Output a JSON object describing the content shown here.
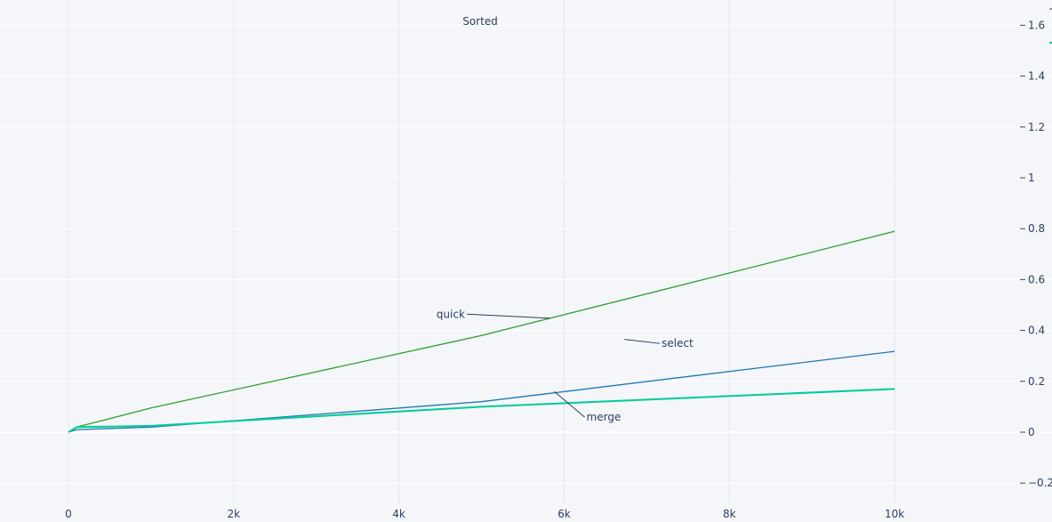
{
  "chart_data": {
    "type": "line",
    "title": "Sorted",
    "xlabel": "",
    "ylabel": "",
    "xlim": [
      0,
      11500
    ],
    "ylim": [
      -0.22,
      1.7
    ],
    "grid": true,
    "x_ticks": [
      0,
      2000,
      4000,
      6000,
      8000,
      10000
    ],
    "x_tick_labels": [
      "0",
      "2k",
      "4k",
      "6k",
      "8k",
      "10k"
    ],
    "y_ticks": [
      -0.2,
      0,
      0.2,
      0.4,
      0.6,
      0.8,
      1,
      1.2,
      1.4,
      1.6
    ],
    "y_tick_labels": [
      "−0.2",
      "0",
      "0.2",
      "0.4",
      "0.6",
      "0.8",
      "1",
      "1.2",
      "1.4",
      "1.6"
    ],
    "series": [
      {
        "color": "#2ca02c",
        "points": [
          [
            0,
            0.0
          ],
          [
            100,
            0.02
          ],
          [
            1000,
            0.095
          ],
          [
            5000,
            0.38
          ],
          [
            10000,
            0.79
          ]
        ]
      },
      {
        "color": "#1f77b4",
        "points": [
          [
            0,
            0.0
          ],
          [
            100,
            0.01
          ],
          [
            1000,
            0.02
          ],
          [
            5000,
            0.12
          ],
          [
            10000,
            0.318
          ]
        ]
      },
      {
        "color": "#00cc96",
        "points": [
          [
            0,
            0.0
          ],
          [
            100,
            0.02
          ],
          [
            1000,
            0.025
          ],
          [
            5000,
            0.1
          ],
          [
            10000,
            0.17
          ]
        ]
      }
    ],
    "annotations": [
      {
        "text": "quick",
        "ax": 4800,
        "ay": 0.45,
        "x": 5830,
        "y": 0.448
      },
      {
        "text": "select",
        "ax": 7180,
        "ay": 0.335,
        "x": 6730,
        "y": 0.365
      },
      {
        "text": "merge",
        "ax": 6270,
        "ay": 0.045,
        "x": 5880,
        "y": 0.16
      }
    ]
  }
}
